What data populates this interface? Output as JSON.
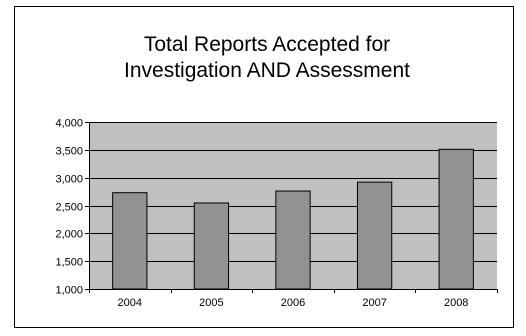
{
  "chart_data": {
    "type": "bar",
    "title_lines": [
      "Total Reports Accepted for",
      "Investigation AND Assessment"
    ],
    "categories": [
      "2004",
      "2005",
      "2006",
      "2007",
      "2008"
    ],
    "values": [
      2730,
      2545,
      2760,
      2920,
      3510
    ],
    "ylim": [
      1000,
      4000
    ],
    "yticks": [
      1000,
      1500,
      2000,
      2500,
      3000,
      3500,
      4000
    ],
    "ytick_labels": [
      "1,000",
      "1,500",
      "2,000",
      "2,500",
      "3,000",
      "3,500",
      "4,000"
    ],
    "xlabel": "",
    "ylabel": "",
    "grid": true,
    "legend": "none",
    "colors": {
      "plot_background": "#c0c0c0",
      "bar_fill": "#929292",
      "bar_stroke": "#000000",
      "gridline": "#000000"
    }
  }
}
